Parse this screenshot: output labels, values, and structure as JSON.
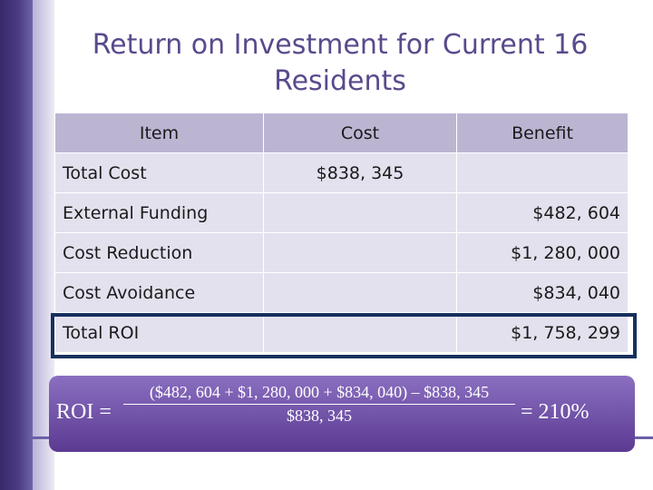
{
  "title": "Return on Investment for Current 16 Residents",
  "table": {
    "headers": [
      "Item",
      "Cost",
      "Benefit"
    ],
    "rows": [
      {
        "item": "Total Cost",
        "cost": "$838, 345",
        "benefit": ""
      },
      {
        "item": "External Funding",
        "cost": "",
        "benefit": "$482, 604"
      },
      {
        "item": "Cost Reduction",
        "cost": "",
        "benefit": "$1, 280, 000"
      },
      {
        "item": "Cost Avoidance",
        "cost": "",
        "benefit": "$834, 040"
      },
      {
        "item": "Total ROI",
        "cost": "",
        "benefit": "$1, 758, 299"
      }
    ]
  },
  "formula": {
    "label": "ROI =",
    "numerator": "($482, 604 + $1, 280, 000 + $834, 040) – $838, 345",
    "denominator": "$838, 345",
    "result": "= 210%"
  },
  "colors": {
    "accent": "#5a4a8c",
    "header_fill": "#bcb5d2",
    "row_fill": "#e4e1ee",
    "highlight_border": "#16305e"
  }
}
